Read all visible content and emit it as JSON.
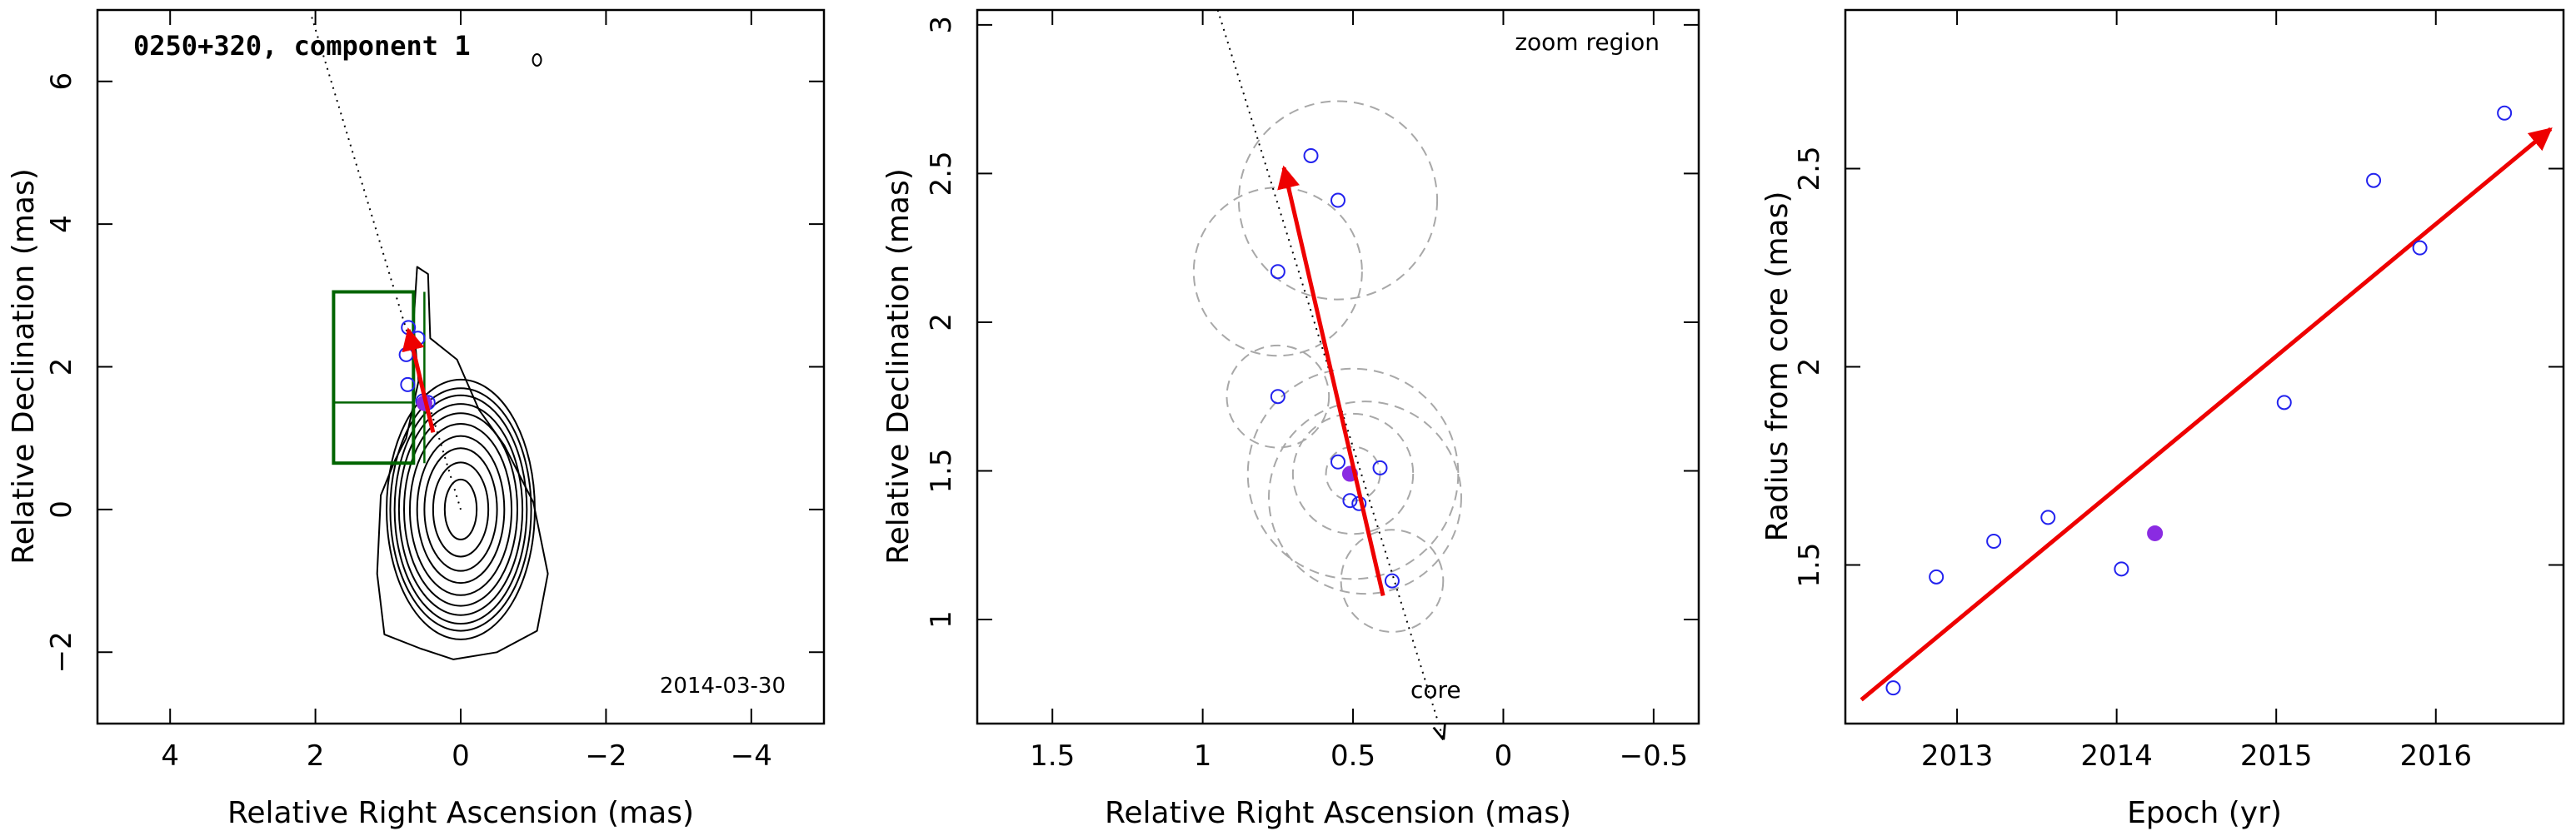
{
  "chart_data": [
    {
      "type": "scatter",
      "title": "0250+320, component 1",
      "annotation": "2014-03-30",
      "xlabel": "Relative Right Ascension (mas)",
      "ylabel": "Relative Declination (mas)",
      "xlim": [
        5,
        -5
      ],
      "ylim": [
        -3,
        7
      ],
      "xticks": [
        4,
        2,
        0,
        -2,
        -4
      ],
      "yticks": [
        -2,
        0,
        2,
        4,
        6
      ],
      "contour_center": [
        0,
        0
      ],
      "contour_semi_axes": [
        [
          0.22,
          0.42
        ],
        [
          0.38,
          0.66
        ],
        [
          0.5,
          0.86
        ],
        [
          0.6,
          1.03
        ],
        [
          0.7,
          1.2
        ],
        [
          0.78,
          1.35
        ],
        [
          0.85,
          1.48
        ],
        [
          0.91,
          1.6
        ],
        [
          0.97,
          1.7
        ],
        [
          1.02,
          1.82
        ]
      ],
      "outer_contour": [
        [
          0.55,
          -1.95
        ],
        [
          1.05,
          -1.75
        ],
        [
          1.15,
          -0.9
        ],
        [
          1.1,
          0.2
        ],
        [
          0.9,
          0.7
        ],
        [
          0.75,
          1.0
        ],
        [
          0.58,
          1.8
        ],
        [
          0.65,
          2.6
        ],
        [
          0.6,
          3.4
        ],
        [
          0.45,
          3.3
        ],
        [
          0.42,
          2.4
        ],
        [
          0.05,
          2.1
        ],
        [
          -0.25,
          1.4
        ],
        [
          -0.6,
          0.9
        ],
        [
          -1.0,
          0.1
        ],
        [
          -1.2,
          -0.9
        ],
        [
          -1.05,
          -1.7
        ],
        [
          -0.5,
          -2.0
        ],
        [
          0.1,
          -2.1
        ]
      ],
      "jet_axis": [
        [
          2.05,
          6.9
        ],
        [
          0,
          0
        ]
      ],
      "zoom_box": [
        [
          1.75,
          0.65
        ],
        [
          0.65,
          3.05
        ]
      ],
      "zoom_mid_line": [
        [
          1.75,
          1.5
        ],
        [
          0.65,
          1.5
        ]
      ],
      "zoom_divider": [
        [
          0.5,
          0.65
        ],
        [
          0.5,
          3.05
        ]
      ],
      "points": [
        [
          0.72,
          2.55
        ],
        [
          0.59,
          2.4
        ],
        [
          0.75,
          2.17
        ],
        [
          0.73,
          1.75
        ],
        [
          0.52,
          1.52
        ],
        [
          0.45,
          1.5
        ]
      ],
      "filled_point": [
        0.5,
        1.49
      ],
      "motion_arrow": [
        [
          0.38,
          1.08
        ],
        [
          0.72,
          2.52
        ]
      ]
    },
    {
      "type": "scatter",
      "annotation": "zoom region",
      "core_label": "core",
      "xlabel": "Relative Right Ascension (mas)",
      "ylabel": "Relative Declination (mas)",
      "xlim": [
        1.75,
        -0.65
      ],
      "ylim": [
        0.65,
        3.05
      ],
      "xticks": [
        1.5,
        1,
        0.5,
        0,
        -0.5
      ],
      "yticks": [
        1,
        1.5,
        2,
        2.5,
        3
      ],
      "jet_axis": [
        [
          0.95,
          3.05
        ],
        [
          0.2,
          0.6
        ]
      ],
      "points": [
        [
          0.64,
          2.56
        ],
        [
          0.55,
          2.41
        ],
        [
          0.75,
          2.17
        ],
        [
          0.75,
          1.75
        ],
        [
          0.55,
          1.53
        ],
        [
          0.41,
          1.51
        ],
        [
          0.51,
          1.4
        ],
        [
          0.48,
          1.39
        ],
        [
          0.37,
          1.13
        ]
      ],
      "filled_point": [
        0.51,
        1.49
      ],
      "error_circles": [
        {
          "center": [
            0.55,
            2.41
          ],
          "radius": 0.33
        },
        {
          "center": [
            0.75,
            2.17
          ],
          "radius": 0.28
        },
        {
          "center": [
            0.75,
            1.75
          ],
          "radius": 0.17
        },
        {
          "center": [
            0.5,
            1.49
          ],
          "radius": 0.2
        },
        {
          "center": [
            0.5,
            1.49
          ],
          "radius": 0.35
        },
        {
          "center": [
            0.46,
            1.41
          ],
          "radius": 0.32
        },
        {
          "center": [
            0.5,
            1.49
          ],
          "radius": 0.09
        },
        {
          "center": [
            0.37,
            1.13
          ],
          "radius": 0.17
        }
      ],
      "motion_arrow": [
        [
          0.4,
          1.08
        ],
        [
          0.73,
          2.52
        ]
      ]
    },
    {
      "type": "scatter",
      "xlabel": "Epoch (yr)",
      "ylabel": "Radius from core (mas)",
      "xlim": [
        2012.3,
        2016.8
      ],
      "ylim": [
        1.1,
        2.9
      ],
      "xticks": [
        2013,
        2014,
        2015,
        2016
      ],
      "yticks": [
        1.5,
        2,
        2.5
      ],
      "points": [
        [
          2012.6,
          1.19
        ],
        [
          2012.87,
          1.47
        ],
        [
          2013.23,
          1.56
        ],
        [
          2013.57,
          1.62
        ],
        [
          2014.03,
          1.49
        ],
        [
          2015.05,
          1.91
        ],
        [
          2015.61,
          2.47
        ],
        [
          2015.9,
          2.3
        ],
        [
          2016.43,
          2.64
        ]
      ],
      "filled_point": [
        2014.24,
        1.58
      ],
      "fit_line": [
        [
          2012.4,
          1.16
        ],
        [
          2016.72,
          2.6
        ]
      ]
    }
  ]
}
